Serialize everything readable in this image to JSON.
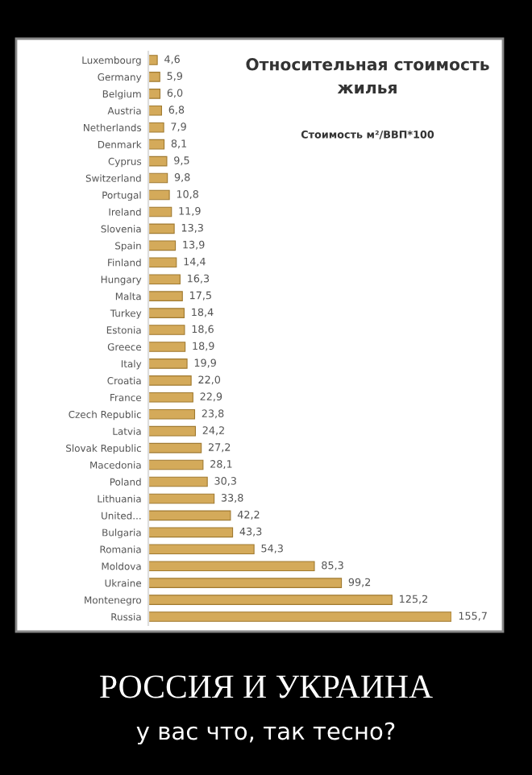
{
  "chart_data": {
    "type": "bar",
    "orientation": "horizontal",
    "title": "Относительная стоимость жилья",
    "subtitle": "Стоимость м²/ВВП*100",
    "categories": [
      "Luxembourg",
      "Germany",
      "Belgium",
      "Austria",
      "Netherlands",
      "Denmark",
      "Cyprus",
      "Switzerland",
      "Portugal",
      "Ireland",
      "Slovenia",
      "Spain",
      "Finland",
      "Hungary",
      "Malta",
      "Turkey",
      "Estonia",
      "Greece",
      "Italy",
      "Croatia",
      "France",
      "Czech Republic",
      "Latvia",
      "Slovak Republic",
      "Macedonia",
      "Poland",
      "Lithuania",
      "United...",
      "Bulgaria",
      "Romania",
      "Moldova",
      "Ukraine",
      "Montenegro",
      "Russia"
    ],
    "values": [
      4.6,
      5.9,
      6.0,
      6.8,
      7.9,
      8.1,
      9.5,
      9.8,
      10.8,
      11.9,
      13.3,
      13.9,
      14.4,
      16.3,
      17.5,
      18.4,
      18.6,
      18.9,
      19.9,
      22.0,
      22.9,
      23.8,
      24.2,
      27.2,
      28.1,
      30.3,
      33.8,
      42.2,
      43.3,
      54.3,
      85.3,
      99.2,
      125.2,
      155.7
    ],
    "value_labels": [
      "4,6",
      "5,9",
      "6,0",
      "6,8",
      "7,9",
      "8,1",
      "9,5",
      "9,8",
      "10,8",
      "11,9",
      "13,3",
      "13,9",
      "14,4",
      "16,3",
      "17,5",
      "18,4",
      "18,6",
      "18,9",
      "19,9",
      "22,0",
      "22,9",
      "23,8",
      "24,2",
      "27,2",
      "28,1",
      "30,3",
      "33,8",
      "42,2",
      "43,3",
      "54,3",
      "85,3",
      "99,2",
      "125,2",
      "155,7"
    ],
    "color": "#d4aa5a",
    "grid": false,
    "legend": false,
    "annotations": [
      "РОССИЯ И УКРАИНА",
      "у вас что, так тесно?"
    ]
  }
}
